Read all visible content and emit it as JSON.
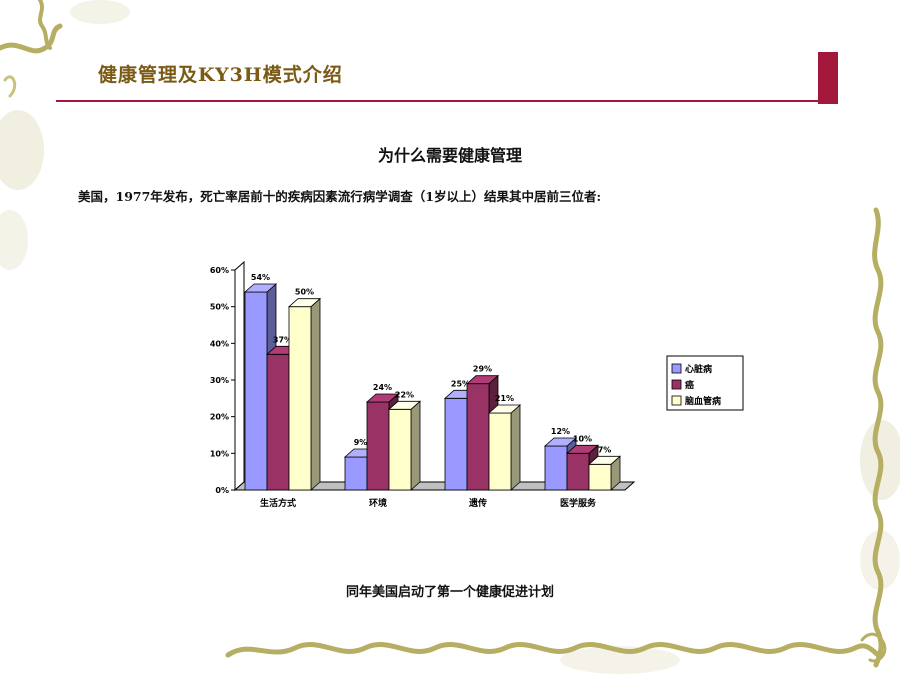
{
  "slide": {
    "title": "健康管理及KY3H模式介绍",
    "subtitle": "为什么需要健康管理",
    "body": "美国，1977年发布，死亡率居前十的疾病因素流行病学调查（1岁以上）结果其中居前三位者:",
    "footer": "同年美国启动了第一个健康促进计划"
  },
  "colors": {
    "accent": "#a3183a",
    "title_text": "#7a5a14",
    "vine": "#b6ae62"
  },
  "chart_data": {
    "type": "bar",
    "categories": [
      "生活方式",
      "环境",
      "遗传",
      "医学服务"
    ],
    "series": [
      {
        "name": "心脏病",
        "values": [
          54,
          9,
          25,
          12
        ],
        "labels": [
          "54%",
          "9%",
          "25%",
          "12%"
        ],
        "color": "#9999ff"
      },
      {
        "name": "癌",
        "values": [
          37,
          24,
          29,
          10
        ],
        "labels": [
          "37%",
          "24%",
          "29%",
          "10%"
        ],
        "color": "#993366"
      },
      {
        "name": "脑血管病",
        "values": [
          50,
          22,
          21,
          7
        ],
        "labels": [
          "50%",
          "22%",
          "21%",
          "7%"
        ],
        "color": "#ffffcc"
      }
    ],
    "yticks": [
      "0%",
      "10%",
      "20%",
      "30%",
      "40%",
      "50%",
      "60%"
    ],
    "ylim": [
      0,
      60
    ],
    "legend": "right",
    "grid": false,
    "style": "3d"
  }
}
